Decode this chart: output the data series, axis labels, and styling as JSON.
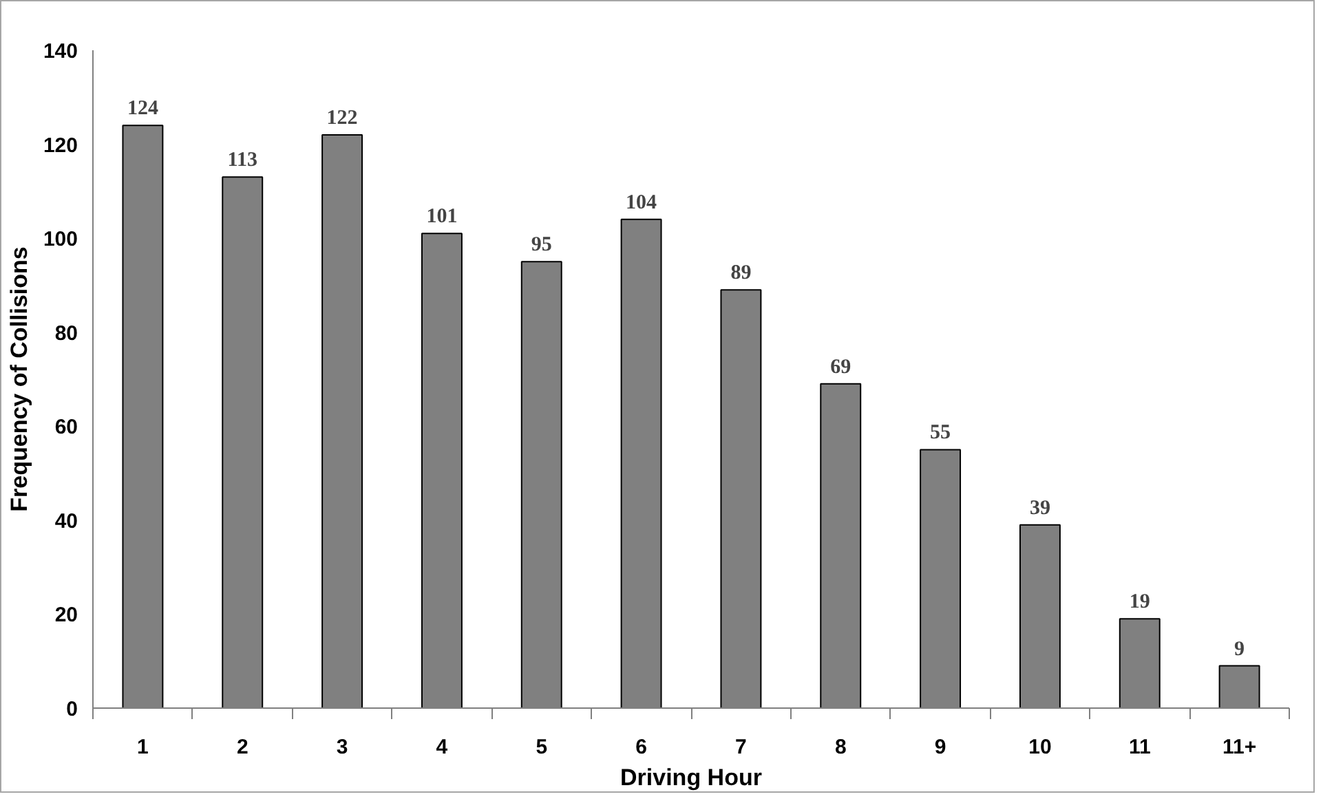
{
  "chart_data": {
    "type": "bar",
    "xlabel": "Driving Hour",
    "ylabel": "Frequency of Collisions",
    "categories": [
      "1",
      "2",
      "3",
      "4",
      "5",
      "6",
      "7",
      "8",
      "9",
      "10",
      "11",
      "11+"
    ],
    "values": [
      124,
      113,
      122,
      101,
      95,
      104,
      89,
      69,
      55,
      39,
      19,
      9
    ],
    "color": "#808080",
    "ylim": [
      0,
      140
    ],
    "yticks": [
      0,
      20,
      40,
      60,
      80,
      100,
      120,
      140
    ],
    "grid": false,
    "data_labels": true
  }
}
